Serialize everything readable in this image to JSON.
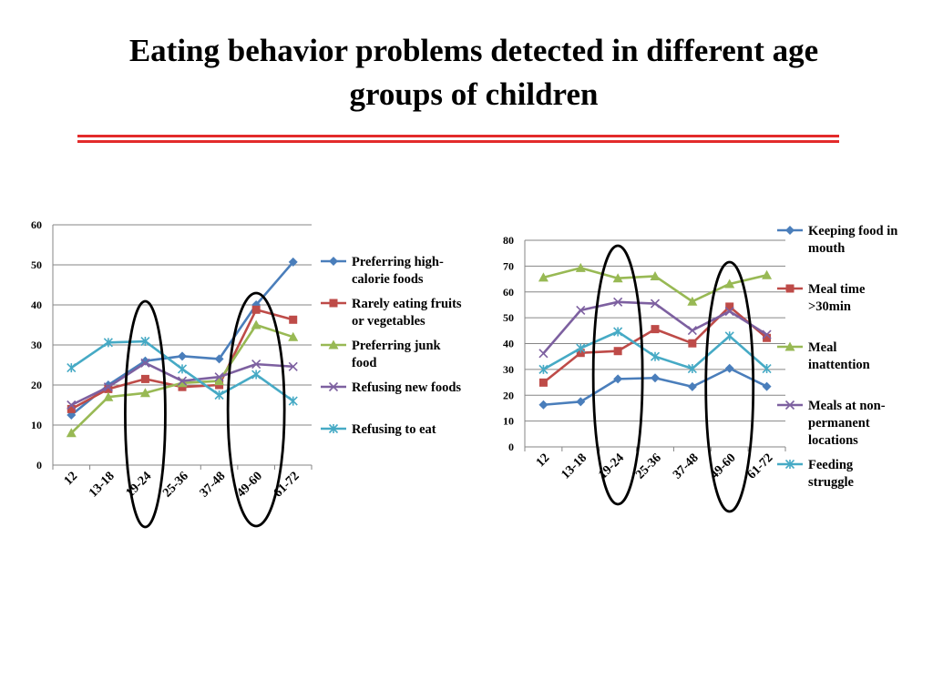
{
  "slide": {
    "title_line1": "Eating behavior problems detected in different age",
    "title_line2": "groups of children"
  },
  "chart_data": [
    {
      "type": "line",
      "categories": [
        "12",
        "13-18",
        "19-24",
        "25-36",
        "37-48",
        "49-60",
        "61-72"
      ],
      "ylim": [
        0,
        60
      ],
      "yticks": [
        0,
        10,
        20,
        30,
        40,
        50,
        60
      ],
      "highlighted_categories": [
        "19-24",
        "49-60"
      ],
      "series": [
        {
          "name": "Preferring high-calorie foods",
          "legend_lines": [
            "Preferring high-",
            "calorie foods"
          ],
          "color": "#4a7ebb",
          "marker": "diamond",
          "values": [
            12.5,
            20,
            26,
            27.2,
            26.5,
            40,
            50.7
          ]
        },
        {
          "name": "Rarely eating fruits or vegetables",
          "legend_lines": [
            "Rarely eating fruits",
            "or vegetables"
          ],
          "color": "#be4b48",
          "marker": "square",
          "values": [
            14,
            19,
            21.5,
            19.5,
            20,
            38.8,
            36.3
          ]
        },
        {
          "name": "Preferring junk food",
          "legend_lines": [
            "Preferring junk",
            "food"
          ],
          "color": "#98b954",
          "marker": "triangle",
          "values": [
            8,
            17,
            18,
            20.5,
            21,
            35,
            32
          ]
        },
        {
          "name": "Refusing new foods",
          "legend_lines": [
            "Refusing new foods"
          ],
          "color": "#7d60a0",
          "marker": "x",
          "values": [
            15,
            19.5,
            25.5,
            21,
            22,
            25.2,
            24.6
          ]
        },
        {
          "name": "Refusing to eat",
          "legend_lines": [
            "Refusing to eat"
          ],
          "color": "#46aac5",
          "marker": "star",
          "values": [
            24.3,
            30.6,
            30.9,
            24,
            17.5,
            22.6,
            16
          ]
        }
      ]
    },
    {
      "type": "line",
      "categories": [
        "12",
        "13-18",
        "19-24",
        "25-36",
        "37-48",
        "49-60",
        "61-72"
      ],
      "ylim": [
        0,
        80
      ],
      "yticks": [
        0,
        10,
        20,
        30,
        40,
        50,
        60,
        70,
        80
      ],
      "highlighted_categories": [
        "19-24",
        "49-60"
      ],
      "series": [
        {
          "name": "Keeping food in mouth",
          "legend_lines": [
            "Keeping food in",
            "mouth"
          ],
          "color": "#4a7ebb",
          "marker": "diamond",
          "values": [
            16.3,
            17.5,
            26.3,
            26.7,
            23.3,
            30.4,
            23.4
          ]
        },
        {
          "name": "Meal time >30min",
          "legend_lines": [
            "Meal time",
            ">30min"
          ],
          "color": "#be4b48",
          "marker": "square",
          "values": [
            24.9,
            36.4,
            37.1,
            45.6,
            40.1,
            54.3,
            42.2
          ]
        },
        {
          "name": "Meal inattention",
          "legend_lines": [
            "Meal",
            "inattention"
          ],
          "color": "#98b954",
          "marker": "triangle",
          "values": [
            65.6,
            69.3,
            65.3,
            66.1,
            56.3,
            63.1,
            66.5
          ]
        },
        {
          "name": "Meals at non-permanent locations",
          "legend_lines": [
            "Meals at non-",
            "permanent",
            "locations"
          ],
          "color": "#7d60a0",
          "marker": "x",
          "values": [
            36.2,
            52.9,
            56.1,
            55.5,
            45.1,
            52.5,
            43.5
          ]
        },
        {
          "name": "Feeding struggle",
          "legend_lines": [
            "Feeding",
            "struggle"
          ],
          "color": "#46aac5",
          "marker": "star",
          "values": [
            30,
            38.2,
            44.6,
            35,
            30.3,
            42.9,
            30.3
          ]
        }
      ]
    }
  ]
}
